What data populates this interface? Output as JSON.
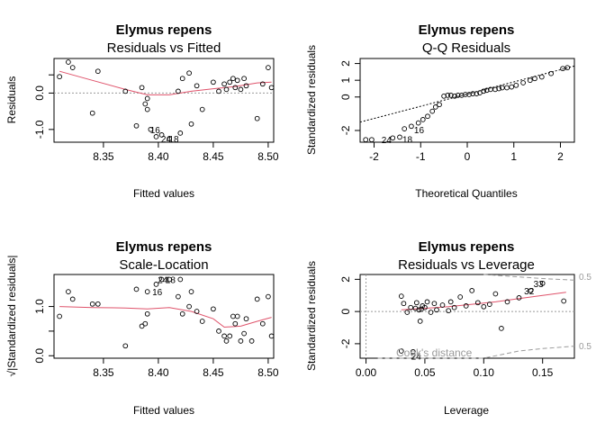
{
  "figure": {
    "species": "Elymus repens"
  },
  "colors": {
    "smoother": "#df536b",
    "reference": "#9a9a9a",
    "points": "#000000"
  },
  "chart_data": [
    {
      "id": "rvf",
      "type": "scatter",
      "title": "Elymus repens",
      "subtitle": "Residuals vs Fitted",
      "xlabel": "Fitted values",
      "ylabel": "Residuals",
      "xlim": [
        8.305,
        8.505
      ],
      "ylim": [
        -1.35,
        0.95
      ],
      "xticks": [
        8.35,
        8.4,
        8.45,
        8.5
      ],
      "xtick_labels": [
        "8.35",
        "8.40",
        "8.45",
        "8.50"
      ],
      "yticks": [
        -1,
        0,
        0.5
      ],
      "ytick_labels": [
        "-1.0",
        "0.0",
        ""
      ],
      "hline": 0,
      "hline_style": "dotted",
      "points": [
        [
          8.31,
          0.45
        ],
        [
          8.318,
          0.85
        ],
        [
          8.322,
          0.7
        ],
        [
          8.34,
          -0.55
        ],
        [
          8.345,
          0.6
        ],
        [
          8.37,
          0.05
        ],
        [
          8.38,
          -0.9
        ],
        [
          8.385,
          0.15
        ],
        [
          8.388,
          -0.3
        ],
        [
          8.39,
          -0.15
        ],
        [
          8.39,
          -0.45
        ],
        [
          8.393,
          -1.0
        ],
        [
          8.398,
          -1.2
        ],
        [
          8.403,
          -1.15
        ],
        [
          8.41,
          -1.25
        ],
        [
          8.418,
          0.05
        ],
        [
          8.42,
          -1.1
        ],
        [
          8.422,
          0.4
        ],
        [
          8.428,
          0.55
        ],
        [
          8.43,
          -0.85
        ],
        [
          8.435,
          0.2
        ],
        [
          8.44,
          -0.45
        ],
        [
          8.45,
          0.3
        ],
        [
          8.455,
          0.05
        ],
        [
          8.46,
          0.25
        ],
        [
          8.462,
          0.1
        ],
        [
          8.465,
          0.3
        ],
        [
          8.468,
          0.4
        ],
        [
          8.47,
          0.15
        ],
        [
          8.472,
          0.35
        ],
        [
          8.475,
          0.1
        ],
        [
          8.478,
          0.4
        ],
        [
          8.48,
          0.2
        ],
        [
          8.49,
          -0.7
        ],
        [
          8.495,
          0.25
        ],
        [
          8.5,
          0.7
        ],
        [
          8.503,
          0.15
        ]
      ],
      "smoother": [
        [
          8.31,
          0.6
        ],
        [
          8.34,
          0.35
        ],
        [
          8.37,
          0.1
        ],
        [
          8.39,
          -0.05
        ],
        [
          8.41,
          -0.05
        ],
        [
          8.43,
          0.05
        ],
        [
          8.45,
          0.12
        ],
        [
          8.47,
          0.18
        ],
        [
          8.49,
          0.28
        ],
        [
          8.503,
          0.3
        ]
      ],
      "labels": [
        {
          "text": "16",
          "x": 8.39,
          "y": -1.0
        },
        {
          "text": "24",
          "x": 8.4,
          "y": -1.25
        },
        {
          "text": "18",
          "x": 8.407,
          "y": -1.25
        }
      ]
    },
    {
      "id": "qq",
      "type": "scatter",
      "title": "Elymus repens",
      "subtitle": "Q-Q Residuals",
      "xlabel": "Theoretical Quantiles",
      "ylabel": "Standardized residuals",
      "xlim": [
        -2.3,
        2.3
      ],
      "ylim": [
        -2.7,
        2.3
      ],
      "xticks": [
        -2,
        -1,
        0,
        1,
        2
      ],
      "xtick_labels": [
        "-2",
        "-1",
        "0",
        "1",
        "2"
      ],
      "yticks": [
        -2,
        0,
        1,
        2
      ],
      "ytick_labels": [
        "-2",
        "0",
        "1",
        "2"
      ],
      "refline": [
        [
          -2.3,
          -1.5
        ],
        [
          2.3,
          1.85
        ]
      ],
      "refline_style": "dotted",
      "points": [
        [
          -2.18,
          -2.55
        ],
        [
          -2.05,
          -2.55
        ],
        [
          -1.6,
          -2.45
        ],
        [
          -1.45,
          -2.4
        ],
        [
          -1.35,
          -1.9
        ],
        [
          -1.2,
          -1.75
        ],
        [
          -1.05,
          -1.55
        ],
        [
          -0.95,
          -1.35
        ],
        [
          -0.85,
          -1.15
        ],
        [
          -0.75,
          -0.85
        ],
        [
          -0.68,
          -0.6
        ],
        [
          -0.6,
          -0.45
        ],
        [
          -0.5,
          0.05
        ],
        [
          -0.42,
          0.1
        ],
        [
          -0.35,
          0.1
        ],
        [
          -0.27,
          0.05
        ],
        [
          -0.2,
          0.1
        ],
        [
          -0.12,
          0.1
        ],
        [
          -0.04,
          0.15
        ],
        [
          0.04,
          0.15
        ],
        [
          0.12,
          0.2
        ],
        [
          0.2,
          0.2
        ],
        [
          0.27,
          0.25
        ],
        [
          0.35,
          0.35
        ],
        [
          0.42,
          0.4
        ],
        [
          0.5,
          0.45
        ],
        [
          0.6,
          0.45
        ],
        [
          0.68,
          0.5
        ],
        [
          0.75,
          0.55
        ],
        [
          0.85,
          0.55
        ],
        [
          0.95,
          0.6
        ],
        [
          1.05,
          0.7
        ],
        [
          1.2,
          0.85
        ],
        [
          1.35,
          1.0
        ],
        [
          1.45,
          1.1
        ],
        [
          1.6,
          1.2
        ],
        [
          1.8,
          1.4
        ],
        [
          2.05,
          1.7
        ],
        [
          2.15,
          1.75
        ]
      ],
      "labels": [
        {
          "text": "24",
          "x": -1.9,
          "y": -2.55
        },
        {
          "text": "18",
          "x": -1.45,
          "y": -2.5
        },
        {
          "text": "16",
          "x": -1.2,
          "y": -1.95
        }
      ]
    },
    {
      "id": "sl",
      "type": "scatter",
      "title": "Elymus repens",
      "subtitle": "Scale-Location",
      "xlabel": "Fitted values",
      "ylabel": "√|Standardized residuals|",
      "xlim": [
        8.305,
        8.505
      ],
      "ylim": [
        -0.05,
        1.65
      ],
      "xticks": [
        8.35,
        8.4,
        8.45,
        8.5
      ],
      "xtick_labels": [
        "8.35",
        "8.40",
        "8.45",
        "8.50"
      ],
      "yticks": [
        0,
        0.5,
        1
      ],
      "ytick_labels": [
        "0.0",
        "",
        "1.0"
      ],
      "points": [
        [
          8.31,
          0.8
        ],
        [
          8.318,
          1.3
        ],
        [
          8.322,
          1.15
        ],
        [
          8.34,
          1.05
        ],
        [
          8.345,
          1.05
        ],
        [
          8.37,
          0.2
        ],
        [
          8.38,
          1.35
        ],
        [
          8.385,
          0.6
        ],
        [
          8.388,
          0.65
        ],
        [
          8.39,
          0.85
        ],
        [
          8.39,
          1.3
        ],
        [
          8.398,
          1.45
        ],
        [
          8.403,
          1.55
        ],
        [
          8.41,
          1.55
        ],
        [
          8.418,
          1.2
        ],
        [
          8.42,
          1.55
        ],
        [
          8.422,
          0.85
        ],
        [
          8.428,
          1.0
        ],
        [
          8.43,
          1.3
        ],
        [
          8.435,
          0.9
        ],
        [
          8.44,
          0.7
        ],
        [
          8.45,
          0.95
        ],
        [
          8.455,
          0.5
        ],
        [
          8.46,
          0.4
        ],
        [
          8.462,
          0.3
        ],
        [
          8.465,
          0.4
        ],
        [
          8.468,
          0.8
        ],
        [
          8.47,
          0.65
        ],
        [
          8.472,
          0.8
        ],
        [
          8.475,
          0.3
        ],
        [
          8.478,
          0.45
        ],
        [
          8.48,
          0.75
        ],
        [
          8.485,
          0.3
        ],
        [
          8.49,
          1.15
        ],
        [
          8.495,
          0.65
        ],
        [
          8.5,
          1.2
        ],
        [
          8.503,
          0.4
        ]
      ],
      "smoother": [
        [
          8.31,
          1.0
        ],
        [
          8.34,
          0.98
        ],
        [
          8.37,
          0.97
        ],
        [
          8.39,
          0.95
        ],
        [
          8.41,
          0.98
        ],
        [
          8.43,
          0.9
        ],
        [
          8.45,
          0.75
        ],
        [
          8.46,
          0.58
        ],
        [
          8.475,
          0.6
        ],
        [
          8.49,
          0.7
        ],
        [
          8.503,
          0.78
        ]
      ],
      "labels": [
        {
          "text": "16",
          "x": 8.392,
          "y": 1.3
        },
        {
          "text": "24",
          "x": 8.397,
          "y": 1.55
        },
        {
          "text": "18",
          "x": 8.404,
          "y": 1.55
        }
      ]
    },
    {
      "id": "rvl",
      "type": "scatter",
      "title": "Elymus repens",
      "subtitle": "Residuals vs Leverage",
      "xlabel": "Leverage",
      "ylabel": "Standardized residuals",
      "xlim": [
        -0.005,
        0.177
      ],
      "ylim": [
        -2.9,
        2.3
      ],
      "xticks": [
        0.0,
        0.05,
        0.1,
        0.15
      ],
      "xtick_labels": [
        "0.00",
        "0.05",
        "0.10",
        "0.15"
      ],
      "yticks": [
        -2,
        0,
        2
      ],
      "ytick_labels": [
        "-2",
        "0",
        "2"
      ],
      "hline": 0,
      "vline": 0,
      "legend_text": "Cook's distance",
      "cook_levels": [
        "0.5",
        "0.5"
      ],
      "cook_upper": [
        [
          0.1,
          2.3
        ],
        [
          0.13,
          2.15
        ],
        [
          0.15,
          2.05
        ],
        [
          0.177,
          1.95
        ]
      ],
      "cook_lower": [
        [
          0.01,
          -2.9
        ],
        [
          0.1,
          -3.05
        ],
        [
          0.13,
          -2.45
        ],
        [
          0.15,
          -2.3
        ],
        [
          0.177,
          -2.15
        ]
      ],
      "points": [
        [
          0.03,
          -2.45
        ],
        [
          0.03,
          0.95
        ],
        [
          0.032,
          0.5
        ],
        [
          0.035,
          -0.05
        ],
        [
          0.038,
          0.25
        ],
        [
          0.04,
          -2.5
        ],
        [
          0.042,
          0.2
        ],
        [
          0.043,
          0.55
        ],
        [
          0.045,
          0.1
        ],
        [
          0.046,
          -0.6
        ],
        [
          0.047,
          0.15
        ],
        [
          0.048,
          0.35
        ],
        [
          0.05,
          0.25
        ],
        [
          0.052,
          0.6
        ],
        [
          0.055,
          -0.05
        ],
        [
          0.058,
          0.5
        ],
        [
          0.06,
          0.1
        ],
        [
          0.065,
          0.4
        ],
        [
          0.07,
          0.05
        ],
        [
          0.072,
          0.6
        ],
        [
          0.075,
          0.25
        ],
        [
          0.08,
          0.9
        ],
        [
          0.085,
          0.35
        ],
        [
          0.09,
          1.3
        ],
        [
          0.095,
          0.55
        ],
        [
          0.1,
          0.3
        ],
        [
          0.105,
          0.45
        ],
        [
          0.11,
          1.1
        ],
        [
          0.115,
          -1.05
        ],
        [
          0.12,
          0.6
        ],
        [
          0.13,
          0.85
        ],
        [
          0.14,
          1.3
        ],
        [
          0.15,
          1.75
        ],
        [
          0.168,
          0.65
        ]
      ],
      "smoother": [
        [
          0.03,
          0.1
        ],
        [
          0.05,
          0.2
        ],
        [
          0.07,
          0.3
        ],
        [
          0.09,
          0.45
        ],
        [
          0.11,
          0.6
        ],
        [
          0.13,
          0.8
        ],
        [
          0.15,
          1.0
        ],
        [
          0.17,
          1.2
        ]
      ],
      "labels": [
        {
          "text": "24",
          "x": 0.036,
          "y": -2.75
        },
        {
          "text": "32",
          "x": 0.132,
          "y": 1.3
        },
        {
          "text": "33",
          "x": 0.14,
          "y": 1.75
        }
      ]
    }
  ]
}
